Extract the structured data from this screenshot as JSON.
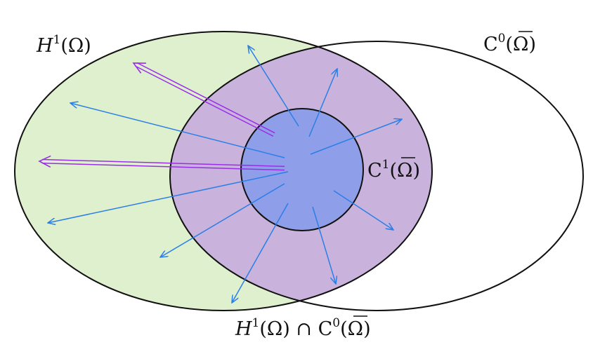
{
  "diagram": {
    "labels": {
      "h1": {
        "main": "H",
        "sup": "1",
        "arg": "(Ω)"
      },
      "c0": {
        "main": "C",
        "sup": "0",
        "arg_open": "(",
        "arg_omega": "Ω",
        "arg_close": ")"
      },
      "c1": {
        "main": "C",
        "sup": "1",
        "arg_open": "(",
        "arg_omega": "Ω",
        "arg_close": ")"
      },
      "intersection": {
        "h_main": "H",
        "h_sup": "1",
        "h_arg": "(Ω)",
        "cap": " ∩ ",
        "c_main": "C",
        "c_sup": "0",
        "c_arg_open": "(",
        "c_arg_omega": "Ω",
        "c_arg_close": ")"
      }
    },
    "colors": {
      "h1_fill": "#dff0cf",
      "intersection_fill": "#c9b3dc",
      "c1_fill": "#8f9ee8",
      "outline": "#111111",
      "thin_arrow": "#2a7fe6",
      "double_arrow": "#9a2ee8"
    }
  }
}
